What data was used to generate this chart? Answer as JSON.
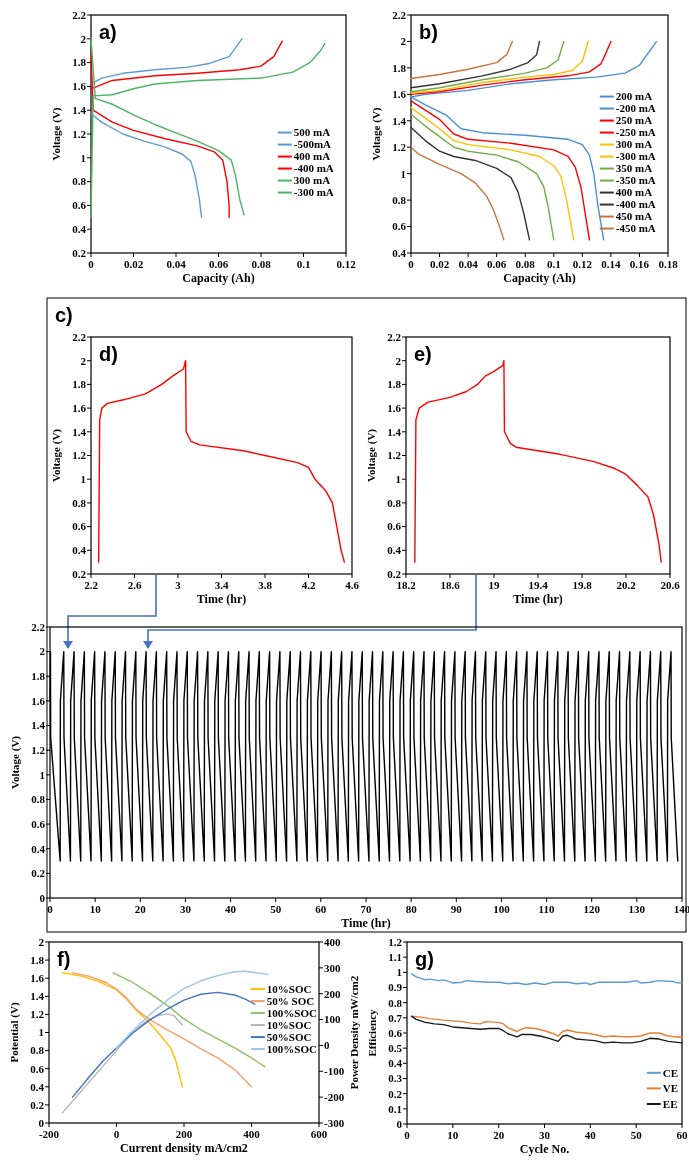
{
  "chart_data": [
    {
      "type": "line",
      "title": "a)",
      "xlabel": "Capacity (Ah)",
      "ylabel": "Voltage (V)",
      "xlim": [
        0,
        0.12
      ],
      "xticks": [
        0,
        0.02,
        0.04,
        0.06,
        0.08,
        0.1,
        0.12
      ],
      "ylim": [
        0.2,
        2.2
      ],
      "yticks": [
        0.2,
        0.4,
        0.6,
        0.8,
        1,
        1.2,
        1.4,
        1.6,
        1.8,
        2,
        2.2
      ],
      "legend": "right",
      "series": [
        {
          "name": "500 mA",
          "color": "#5b9bd5",
          "x": [
            0,
            0.005,
            0.015,
            0.03,
            0.045,
            0.055,
            0.065,
            0.071
          ],
          "values": [
            1.62,
            1.67,
            1.71,
            1.74,
            1.76,
            1.79,
            1.85,
            2
          ]
        },
        {
          "name": "-500mA",
          "color": "#5b9bd5",
          "x": [
            0,
            0.005,
            0.015,
            0.025,
            0.035,
            0.043,
            0.047,
            0.049,
            0.051,
            0.052
          ],
          "values": [
            1.37,
            1.3,
            1.2,
            1.14,
            1.09,
            1.03,
            0.97,
            0.85,
            0.65,
            0.5
          ]
        },
        {
          "name": "400 mA",
          "color": "#ff0000",
          "x": [
            0,
            0.01,
            0.03,
            0.05,
            0.07,
            0.08,
            0.086,
            0.09
          ],
          "values": [
            1.58,
            1.65,
            1.69,
            1.71,
            1.74,
            1.77,
            1.85,
            1.98
          ]
        },
        {
          "name": "-400 mA",
          "color": "#ff0000",
          "x": [
            0,
            0.001,
            0.01,
            0.02,
            0.035,
            0.05,
            0.058,
            0.062,
            0.064,
            0.065,
            0.065
          ],
          "values": [
            1.9,
            1.4,
            1.3,
            1.23,
            1.16,
            1.1,
            1.05,
            0.98,
            0.8,
            0.6,
            0.5
          ]
        },
        {
          "name": "300 mA",
          "color": "#4cb563",
          "x": [
            0,
            0.001,
            0.01,
            0.02,
            0.03,
            0.05,
            0.08,
            0.095,
            0.103,
            0.108,
            0.11
          ],
          "values": [
            0.5,
            1.52,
            1.53,
            1.58,
            1.62,
            1.65,
            1.67,
            1.72,
            1.8,
            1.9,
            1.96
          ]
        },
        {
          "name": "-300 mA",
          "color": "#4cb563",
          "x": [
            0,
            0.002,
            0.01,
            0.02,
            0.03,
            0.04,
            0.05,
            0.06,
            0.066,
            0.068,
            0.07,
            0.072
          ],
          "values": [
            2,
            1.5,
            1.45,
            1.36,
            1.28,
            1.21,
            1.14,
            1.06,
            0.98,
            0.85,
            0.65,
            0.52
          ]
        }
      ]
    },
    {
      "type": "line",
      "title": "b)",
      "xlabel": "Capacity (Ah)",
      "ylabel": "Voltage (V)",
      "xlim": [
        0,
        0.18
      ],
      "xticks": [
        0,
        0.02,
        0.04,
        0.06,
        0.08,
        0.1,
        0.12,
        0.14,
        0.16,
        0.18
      ],
      "ylim": [
        0.4,
        2.2
      ],
      "yticks": [
        0.4,
        0.6,
        0.8,
        1,
        1.2,
        1.4,
        1.6,
        1.8,
        2,
        2.2
      ],
      "legend": "right",
      "series": [
        {
          "name": "200 mA",
          "color": "#4a8fd6",
          "x": [
            0,
            0.01,
            0.04,
            0.07,
            0.1,
            0.13,
            0.15,
            0.16,
            0.172
          ],
          "values": [
            1.58,
            1.6,
            1.63,
            1.68,
            1.71,
            1.73,
            1.76,
            1.82,
            2
          ]
        },
        {
          "name": "-200 mA",
          "color": "#4a8fd6",
          "x": [
            0,
            0.01,
            0.025,
            0.035,
            0.05,
            0.08,
            0.11,
            0.12,
            0.125,
            0.128,
            0.131,
            0.135
          ],
          "values": [
            1.58,
            1.52,
            1.44,
            1.34,
            1.31,
            1.29,
            1.26,
            1.22,
            1.14,
            1,
            0.75,
            0.5
          ]
        },
        {
          "name": "250 mA",
          "color": "#ff0000",
          "x": [
            0,
            0.02,
            0.05,
            0.08,
            0.11,
            0.125,
            0.133,
            0.136,
            0.14
          ],
          "values": [
            1.6,
            1.62,
            1.67,
            1.71,
            1.74,
            1.77,
            1.83,
            1.9,
            2
          ]
        },
        {
          "name": "-250 mA",
          "color": "#ff0000",
          "x": [
            0,
            0.01,
            0.02,
            0.03,
            0.04,
            0.07,
            0.1,
            0.11,
            0.115,
            0.119,
            0.122,
            0.125
          ],
          "values": [
            1.55,
            1.48,
            1.41,
            1.3,
            1.26,
            1.23,
            1.18,
            1.13,
            1.05,
            0.9,
            0.7,
            0.5
          ]
        },
        {
          "name": "300 mA",
          "color": "#ffc000",
          "x": [
            0,
            0.02,
            0.05,
            0.08,
            0.1,
            0.113,
            0.12,
            0.124
          ],
          "values": [
            1.61,
            1.63,
            1.69,
            1.73,
            1.75,
            1.78,
            1.85,
            2
          ]
        },
        {
          "name": "-300 mA",
          "color": "#ffc000",
          "x": [
            0,
            0.01,
            0.02,
            0.03,
            0.04,
            0.07,
            0.09,
            0.1,
            0.105,
            0.109,
            0.114
          ],
          "values": [
            1.5,
            1.42,
            1.34,
            1.25,
            1.22,
            1.18,
            1.13,
            1.06,
            0.98,
            0.8,
            0.5
          ]
        },
        {
          "name": "350 mA",
          "color": "#70ad47",
          "x": [
            0,
            0.02,
            0.05,
            0.08,
            0.095,
            0.103,
            0.107
          ],
          "values": [
            1.62,
            1.65,
            1.71,
            1.76,
            1.8,
            1.86,
            2
          ]
        },
        {
          "name": "-350 mA",
          "color": "#70ad47",
          "x": [
            0,
            0.01,
            0.02,
            0.03,
            0.04,
            0.06,
            0.075,
            0.088,
            0.093,
            0.096,
            0.1
          ],
          "values": [
            1.45,
            1.36,
            1.28,
            1.2,
            1.17,
            1.14,
            1.09,
            1,
            0.9,
            0.75,
            0.5
          ]
        },
        {
          "name": "400 mA",
          "color": "#333333",
          "x": [
            0,
            0.02,
            0.05,
            0.07,
            0.082,
            0.088,
            0.09
          ],
          "values": [
            1.65,
            1.68,
            1.74,
            1.79,
            1.84,
            1.9,
            2
          ]
        },
        {
          "name": "-400 mA",
          "color": "#333333",
          "x": [
            0,
            0.01,
            0.02,
            0.03,
            0.045,
            0.06,
            0.07,
            0.075,
            0.079,
            0.083
          ],
          "values": [
            1.35,
            1.25,
            1.17,
            1.13,
            1.1,
            1.04,
            0.97,
            0.86,
            0.7,
            0.5
          ]
        },
        {
          "name": "450 mA",
          "color": "#c8743c",
          "x": [
            0,
            0.02,
            0.04,
            0.06,
            0.067,
            0.071
          ],
          "values": [
            1.72,
            1.75,
            1.79,
            1.84,
            1.9,
            2
          ]
        },
        {
          "name": "-450 mA",
          "color": "#c8743c",
          "x": [
            0,
            0.005,
            0.02,
            0.035,
            0.045,
            0.053,
            0.058,
            0.062,
            0.065
          ],
          "values": [
            1.2,
            1.15,
            1.07,
            1,
            0.93,
            0.83,
            0.72,
            0.6,
            0.5
          ]
        }
      ]
    },
    {
      "type": "line",
      "annotations": [
        "c)"
      ],
      "xlabel": "Time (hr)",
      "ylabel": "Voltage (V)",
      "xlim": [
        0,
        140
      ],
      "xticks": [
        0,
        10,
        20,
        30,
        40,
        50,
        60,
        70,
        80,
        90,
        100,
        110,
        120,
        130,
        140
      ],
      "ylim": [
        0,
        2.2
      ],
      "yticks": [
        0,
        0.2,
        0.4,
        0.6,
        0.8,
        1,
        1.2,
        1.4,
        1.6,
        1.8,
        2,
        2.2
      ],
      "series": [
        {
          "color": "#000000",
          "x": [
            0,
            0.1,
            0.15,
            2.25,
            2.3,
            3.05,
            3.1,
            4.53,
            4.58,
            5.33,
            5.38,
            6.81,
            6.86,
            7.61,
            7.66,
            9.09,
            9.14,
            9.89,
            9.94,
            11.37,
            11.42,
            12.17,
            12.22,
            13.65,
            13.7,
            14.45,
            14.5,
            15.93,
            15.98,
            16.73,
            16.78,
            18.21,
            18.26,
            19.01,
            19.06,
            20.49,
            20.54,
            21.29,
            21.34,
            22.77,
            22.82,
            23.57,
            23.62,
            25.05,
            25.1,
            25.85,
            25.9,
            27.33,
            27.38,
            28.13,
            28.18,
            29.61,
            29.66,
            30.41,
            30.46,
            31.89,
            31.94,
            32.69,
            32.74,
            34.17,
            34.22,
            34.97,
            35.02,
            36.45,
            36.5,
            37.25,
            37.3,
            38.73,
            38.78,
            39.53,
            39.58,
            41.01,
            41.06,
            41.81,
            41.86,
            43.29,
            43.34,
            44.09,
            44.14,
            45.57,
            45.62,
            46.37,
            46.42,
            47.85,
            47.9,
            48.65,
            48.7,
            50.13,
            50.18,
            50.93,
            50.98,
            52.41,
            52.46,
            53.21,
            53.26,
            54.69,
            54.74,
            55.49,
            55.54,
            56.97,
            57.02,
            57.77,
            57.82,
            59.25,
            59.3,
            60.05,
            60.1,
            61.53,
            61.58,
            62.33,
            62.38,
            63.81,
            63.86,
            64.61,
            64.66,
            66.09,
            66.14,
            66.89,
            66.94,
            68.37,
            68.42,
            69.17,
            69.22,
            70.65,
            70.7,
            71.45,
            71.5,
            72.93,
            72.98,
            73.73,
            73.78,
            75.21,
            75.26,
            76.01,
            76.06,
            77.49,
            77.54,
            78.29,
            78.34,
            79.77,
            79.82,
            80.57,
            80.62,
            82.05,
            82.1,
            82.85,
            82.9,
            84.33,
            84.38,
            85.13,
            85.18,
            86.61,
            86.66,
            87.41,
            87.46,
            88.89,
            88.94,
            89.69,
            89.74,
            91.17,
            91.22,
            91.97,
            92.02,
            93.45,
            93.5,
            94.25,
            94.3,
            95.73,
            95.78,
            96.53,
            96.58,
            98.01,
            98.06,
            98.81,
            98.86,
            100.29,
            100.34,
            101.09,
            101.14,
            102.57,
            102.62,
            103.37,
            103.42,
            104.85,
            104.9,
            105.65,
            105.7,
            107.13,
            107.18,
            107.93,
            107.98,
            109.41,
            109.46,
            110.21,
            110.26,
            111.69,
            111.74,
            112.49,
            112.54,
            113.97,
            114.02,
            114.77,
            114.82,
            116.25,
            116.3,
            117.05,
            117.1,
            118.53,
            118.58,
            119.33,
            119.38,
            120.81,
            120.86,
            121.61,
            121.66,
            123.09,
            123.14,
            123.89,
            123.94,
            125.37,
            125.42,
            126.17,
            126.22,
            127.65,
            127.7,
            128.45,
            128.5,
            129.93,
            129.98,
            130.73,
            130.78,
            132.21,
            132.26,
            133.01,
            133.06,
            134.49,
            134.54,
            135.29,
            135.34,
            136.77,
            136.82,
            137.57,
            137.62,
            139.05
          ],
          "values": [
            1.6,
            2,
            1.3,
            0.3,
            1.6,
            2,
            1.3,
            0.3,
            1.6,
            2,
            1.3,
            0.3,
            1.6,
            2,
            1.3,
            0.3,
            1.6,
            2,
            1.3,
            0.3,
            1.6,
            2,
            1.3,
            0.3,
            1.6,
            2,
            1.3,
            0.3,
            1.6,
            2,
            1.3,
            0.3,
            1.6,
            2,
            1.3,
            0.3,
            1.6,
            2,
            1.3,
            0.3,
            1.6,
            2,
            1.3,
            0.3,
            1.6,
            2,
            1.3,
            0.3,
            1.6,
            2,
            1.3,
            0.3,
            1.6,
            2,
            1.3,
            0.3,
            1.6,
            2,
            1.3,
            0.3,
            1.6,
            2,
            1.3,
            0.3,
            1.6,
            2,
            1.3,
            0.3,
            1.6,
            2,
            1.3,
            0.3,
            1.6,
            2,
            1.3,
            0.3,
            1.6,
            2,
            1.3,
            0.3,
            1.6,
            2,
            1.3,
            0.3,
            1.6,
            2,
            1.3,
            0.3,
            1.6,
            2,
            1.3,
            0.3,
            1.6,
            2,
            1.3,
            0.3,
            1.6,
            2,
            1.3,
            0.3,
            1.6,
            2,
            1.3,
            0.3,
            1.6,
            2,
            1.3,
            0.3,
            1.6,
            2,
            1.3,
            0.3,
            1.6,
            2,
            1.3,
            0.3,
            1.6,
            2,
            1.3,
            0.3,
            1.6,
            2,
            1.3,
            0.3,
            1.6,
            2,
            1.3,
            0.3,
            1.6,
            2,
            1.3,
            0.3,
            1.6,
            2,
            1.3,
            0.3,
            1.6,
            2,
            1.3,
            0.3,
            1.6,
            2,
            1.3,
            0.3,
            1.6,
            2,
            1.3,
            0.3,
            1.6,
            2,
            1.3,
            0.3,
            1.6,
            2,
            1.3,
            0.3,
            1.6,
            2,
            1.3,
            0.3,
            1.6,
            2,
            1.3,
            0.3,
            1.6,
            2,
            1.3,
            0.3,
            1.6,
            2,
            1.3,
            0.3,
            1.6,
            2,
            1.3,
            0.3,
            1.6,
            2,
            1.3,
            0.3,
            1.6,
            2,
            1.3,
            0.3,
            1.6,
            2,
            1.3,
            0.3,
            1.6,
            2,
            1.3,
            0.3,
            1.6,
            2,
            1.3,
            0.3,
            1.6,
            2,
            1.3,
            0.3,
            1.6,
            2,
            1.3,
            0.3,
            1.6,
            2,
            1.3,
            0.3,
            1.6,
            2,
            1.3,
            0.3,
            1.6,
            2,
            1.3,
            0.3,
            1.6,
            2,
            1.3,
            0.3,
            1.6,
            2,
            1.3,
            0.3,
            1.6,
            2,
            1.3,
            0.3,
            1.6,
            2,
            1.3,
            0.3,
            1.6,
            2,
            1.3,
            0.3,
            1.6,
            2,
            1.3,
            0.3,
            1.6,
            2,
            1.3,
            0.3
          ]
        }
      ]
    },
    {
      "type": "line",
      "title": "d)",
      "xlabel": "Time (hr)",
      "ylabel": "Voltage (V)",
      "xlim": [
        2.2,
        4.6
      ],
      "xticks": [
        2.2,
        2.6,
        3,
        3.4,
        3.8,
        4.2,
        4.6
      ],
      "ylim": [
        0.2,
        2.2
      ],
      "yticks": [
        0.2,
        0.4,
        0.6,
        0.8,
        1,
        1.2,
        1.4,
        1.6,
        1.8,
        2,
        2.2
      ],
      "series": [
        {
          "color": "#ff0000",
          "x": [
            2.27,
            2.28,
            2.3,
            2.35,
            2.5,
            2.7,
            2.85,
            2.95,
            3.05,
            3.07,
            3.075,
            3.12,
            3.2,
            3.6,
            3.8,
            4.1,
            4.2,
            4.26,
            4.36,
            4.42,
            4.46,
            4.5,
            4.53
          ],
          "values": [
            0.3,
            1.5,
            1.6,
            1.64,
            1.67,
            1.72,
            1.8,
            1.87,
            1.93,
            2,
            1.4,
            1.32,
            1.29,
            1.24,
            1.2,
            1.14,
            1.1,
            1,
            0.9,
            0.8,
            0.6,
            0.4,
            0.3
          ]
        }
      ]
    },
    {
      "type": "line",
      "title": "e)",
      "xlabel": "Time (hr)",
      "ylabel": "Voltage (V)",
      "xlim": [
        18.2,
        20.6
      ],
      "xticks": [
        18.2,
        18.6,
        19,
        19.4,
        19.8,
        20.2,
        20.6
      ],
      "ylim": [
        0.2,
        2.2
      ],
      "yticks": [
        0.2,
        0.4,
        0.6,
        0.8,
        1,
        1.2,
        1.4,
        1.6,
        1.8,
        2,
        2.2
      ],
      "series": [
        {
          "color": "#ff0000",
          "x": [
            18.28,
            18.29,
            18.32,
            18.4,
            18.6,
            18.75,
            18.85,
            18.92,
            19,
            19.08,
            19.09,
            19.095,
            19.15,
            19.2,
            19.6,
            19.9,
            20.1,
            20.2,
            20.3,
            20.4,
            20.45,
            20.5,
            20.52
          ],
          "values": [
            0.3,
            1.5,
            1.6,
            1.65,
            1.69,
            1.74,
            1.8,
            1.87,
            1.91,
            1.96,
            2,
            1.4,
            1.3,
            1.27,
            1.21,
            1.15,
            1.09,
            1.04,
            0.95,
            0.85,
            0.7,
            0.45,
            0.3
          ]
        }
      ]
    },
    {
      "type": "line",
      "title": "f)",
      "xlabel": "Current density mA/cm2",
      "ylabel": "Potential (V)",
      "y2label": "Power Density mW/cm2",
      "xlim": [
        -200,
        600
      ],
      "xticks": [
        -200,
        0,
        200,
        400,
        600
      ],
      "ylim": [
        0,
        2
      ],
      "yticks": [
        0,
        0.2,
        0.4,
        0.6,
        0.8,
        1,
        1.2,
        1.4,
        1.6,
        1.8,
        2
      ],
      "y2lim": [
        -300,
        400
      ],
      "y2ticks": [
        -300,
        -200,
        -100,
        0,
        100,
        200,
        300,
        400
      ],
      "legend": "top right",
      "series": [
        {
          "name": "10%SOC",
          "color": "#ffc000",
          "x": [
            -160,
            -100,
            -50,
            0,
            30,
            60,
            100,
            130,
            160,
            175,
            185,
            195
          ],
          "values": [
            1.66,
            1.62,
            1.56,
            1.47,
            1.37,
            1.24,
            1.1,
            0.97,
            0.83,
            0.7,
            0.55,
            0.4
          ]
        },
        {
          "name": "50% SOC",
          "color": "#f4a070",
          "x": [
            -130,
            -80,
            -30,
            0,
            30,
            60,
            100,
            150,
            200,
            250,
            300,
            350,
            400
          ],
          "values": [
            1.66,
            1.62,
            1.55,
            1.48,
            1.38,
            1.25,
            1.14,
            1.03,
            0.93,
            0.82,
            0.72,
            0.59,
            0.4
          ]
        },
        {
          "name": "100%SOC",
          "color": "#8cc168",
          "x": [
            -10,
            50,
            100,
            150,
            200,
            250,
            300,
            350,
            400,
            440
          ],
          "values": [
            1.66,
            1.55,
            1.43,
            1.3,
            1.15,
            1.03,
            0.93,
            0.83,
            0.72,
            0.62
          ]
        },
        {
          "name": "10%SOC",
          "color": "#b4b4b4",
          "axis": "y2",
          "x": [
            -160,
            -120,
            -80,
            -40,
            0,
            40,
            80,
            120,
            150,
            170,
            195
          ],
          "values": [
            -260,
            -200,
            -140,
            -80,
            -20,
            40,
            85,
            115,
            122,
            115,
            80
          ]
        },
        {
          "name": "50%SOC",
          "color": "#4472c4",
          "axis": "y2",
          "x": [
            -130,
            -80,
            -40,
            0,
            50,
            100,
            150,
            200,
            250,
            300,
            350,
            380,
            410
          ],
          "values": [
            -200,
            -120,
            -60,
            -10,
            50,
            100,
            140,
            175,
            198,
            205,
            195,
            180,
            160
          ]
        },
        {
          "name": "100%SOC",
          "color": "#9dc3e6",
          "axis": "y2",
          "x": [
            0,
            50,
            100,
            150,
            200,
            250,
            300,
            350,
            380,
            450
          ],
          "values": [
            -10,
            60,
            120,
            175,
            220,
            250,
            270,
            285,
            287,
            275
          ]
        }
      ]
    },
    {
      "type": "line",
      "title": "g)",
      "xlabel": "Cycle No.",
      "ylabel": "Efficiency",
      "xlim": [
        0,
        60
      ],
      "xticks": [
        0,
        10,
        20,
        30,
        40,
        50,
        60
      ],
      "ylim": [
        0,
        1.2
      ],
      "yticks": [
        0,
        0.1,
        0.2,
        0.3,
        0.4,
        0.5,
        0.6,
        0.7,
        0.8,
        0.9,
        1,
        1.1,
        1.2
      ],
      "legend": "bottom right",
      "series": [
        {
          "name": "CE",
          "color": "#5b9bd5",
          "x": [
            1,
            2,
            4,
            5,
            7,
            8,
            10,
            12,
            13,
            15,
            18,
            20,
            22,
            24,
            26,
            28,
            30,
            32,
            35,
            37,
            39,
            40,
            42,
            45,
            48,
            50,
            51,
            53,
            55,
            58,
            59,
            60
          ],
          "values": [
            0.99,
            0.97,
            0.95,
            0.955,
            0.945,
            0.95,
            0.93,
            0.935,
            0.945,
            0.94,
            0.935,
            0.935,
            0.925,
            0.93,
            0.92,
            0.93,
            0.92,
            0.935,
            0.935,
            0.925,
            0.93,
            0.92,
            0.935,
            0.935,
            0.935,
            0.945,
            0.93,
            0.935,
            0.945,
            0.94,
            0.93,
            0.935
          ]
        },
        {
          "name": "VE",
          "color": "#ed7d31",
          "x": [
            1,
            3,
            5,
            8,
            10,
            12,
            14,
            16,
            17,
            20,
            21,
            22,
            24,
            25,
            26,
            28,
            30,
            32,
            33,
            34,
            35,
            37,
            39,
            41,
            43,
            45,
            47,
            49,
            51,
            53,
            55,
            57,
            60
          ],
          "values": [
            0.71,
            0.705,
            0.695,
            0.685,
            0.68,
            0.675,
            0.665,
            0.66,
            0.675,
            0.67,
            0.66,
            0.635,
            0.61,
            0.625,
            0.635,
            0.63,
            0.615,
            0.595,
            0.58,
            0.61,
            0.62,
            0.605,
            0.6,
            0.59,
            0.575,
            0.58,
            0.575,
            0.575,
            0.58,
            0.6,
            0.6,
            0.58,
            0.57
          ]
        },
        {
          "name": "EE",
          "color": "#1a1a1a",
          "x": [
            1,
            2,
            4,
            6,
            8,
            10,
            12,
            14,
            16,
            18,
            20,
            21,
            22,
            24,
            25,
            27,
            29,
            31,
            33,
            34,
            35,
            37,
            39,
            41,
            43,
            45,
            47,
            49,
            51,
            53,
            55,
            57,
            60
          ],
          "values": [
            0.71,
            0.69,
            0.67,
            0.66,
            0.655,
            0.64,
            0.635,
            0.63,
            0.625,
            0.63,
            0.63,
            0.615,
            0.595,
            0.575,
            0.59,
            0.59,
            0.58,
            0.565,
            0.545,
            0.58,
            0.585,
            0.56,
            0.555,
            0.55,
            0.535,
            0.54,
            0.535,
            0.535,
            0.545,
            0.565,
            0.56,
            0.545,
            0.535
          ]
        }
      ]
    }
  ]
}
